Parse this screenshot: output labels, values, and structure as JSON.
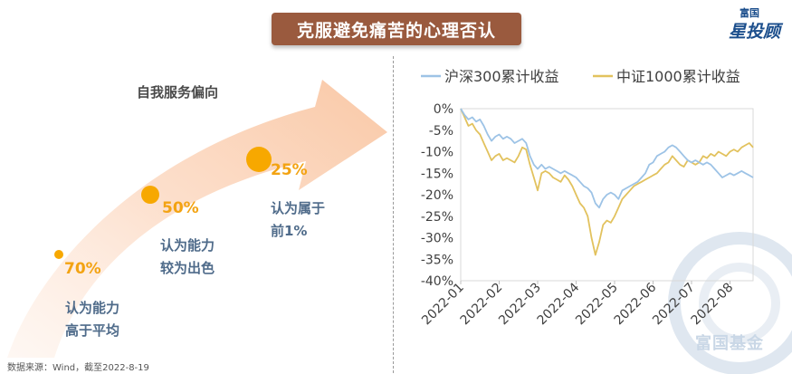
{
  "page": {
    "title": "克服避免痛苦的心理否认",
    "logo_small": "富国",
    "logo_big": "星投顾",
    "footnote": "数据来源：Wind，截至2022-8-19",
    "watermark": "富国基金"
  },
  "bias": {
    "title": "自我服务偏向",
    "points": [
      {
        "pct": "70%",
        "line1": "认为能力",
        "line2": "高于平均"
      },
      {
        "pct": "50%",
        "line1": "认为能力",
        "line2": "较为出色"
      },
      {
        "pct": "25%",
        "line1": "认为属于",
        "line2": "前1%"
      }
    ]
  },
  "colors": {
    "csi300": "#9dc3e6",
    "csi1000": "#e2c25e",
    "accent": "#9a5a3e",
    "dot": "#f7a800"
  },
  "chart_data": {
    "type": "line",
    "title": "",
    "xlabel": "",
    "ylabel": "",
    "ylim": [
      -40,
      0
    ],
    "yticks": [
      0,
      -5,
      -10,
      -15,
      -20,
      -25,
      -30,
      -35,
      -40
    ],
    "ytick_labels": [
      "0%",
      "-5%",
      "-10%",
      "-15%",
      "-20%",
      "-25%",
      "-30%",
      "-35%",
      "-40%"
    ],
    "xtick_labels": [
      "2022-01",
      "2022-02",
      "2022-03",
      "2022-04",
      "2022-05",
      "2022-06",
      "2022-07",
      "2022-08"
    ],
    "x_range": [
      0,
      7.6
    ],
    "series": [
      {
        "name": "沪深300累计收益",
        "color": "#9dc3e6",
        "x": [
          0,
          0.1,
          0.2,
          0.3,
          0.4,
          0.5,
          0.6,
          0.7,
          0.8,
          0.9,
          1.0,
          1.1,
          1.2,
          1.3,
          1.4,
          1.5,
          1.6,
          1.7,
          1.8,
          1.9,
          2.0,
          2.1,
          2.2,
          2.3,
          2.4,
          2.5,
          2.6,
          2.7,
          2.8,
          2.9,
          3.0,
          3.1,
          3.2,
          3.3,
          3.4,
          3.5,
          3.6,
          3.7,
          3.8,
          3.9,
          4.0,
          4.1,
          4.2,
          4.3,
          4.4,
          4.5,
          4.6,
          4.7,
          4.8,
          4.9,
          5.0,
          5.1,
          5.2,
          5.3,
          5.4,
          5.5,
          5.6,
          5.7,
          5.8,
          5.9,
          6.0,
          6.1,
          6.2,
          6.3,
          6.4,
          6.5,
          6.6,
          6.7,
          6.8,
          6.9,
          7.0,
          7.1,
          7.2,
          7.3,
          7.4,
          7.5,
          7.6
        ],
        "values": [
          0,
          -1.5,
          -2.5,
          -2,
          -3,
          -2.5,
          -4,
          -6,
          -7.5,
          -6.5,
          -6,
          -7,
          -6.5,
          -7,
          -8,
          -7.5,
          -7,
          -8,
          -11,
          -13,
          -14,
          -13,
          -14,
          -13.5,
          -14,
          -14.5,
          -15,
          -14.5,
          -15,
          -15.5,
          -16,
          -17,
          -18,
          -18.5,
          -19.5,
          -22,
          -23,
          -21,
          -20,
          -19.5,
          -20,
          -21,
          -19,
          -18.5,
          -18,
          -17.5,
          -17,
          -16,
          -15,
          -13,
          -12.5,
          -11,
          -10.5,
          -10,
          -9,
          -8.5,
          -9,
          -10,
          -11,
          -12,
          -12.5,
          -12,
          -12.5,
          -13,
          -12.5,
          -13,
          -14,
          -15,
          -16,
          -15.5,
          -15,
          -15.5,
          -15,
          -14.5,
          -15,
          -15.5,
          -16
        ]
      },
      {
        "name": "中证1000累计收益",
        "color": "#e2c25e",
        "x": [
          0,
          0.1,
          0.2,
          0.3,
          0.4,
          0.5,
          0.6,
          0.7,
          0.8,
          0.9,
          1.0,
          1.1,
          1.2,
          1.3,
          1.4,
          1.5,
          1.6,
          1.7,
          1.8,
          1.9,
          2.0,
          2.1,
          2.2,
          2.3,
          2.4,
          2.5,
          2.6,
          2.7,
          2.8,
          2.9,
          3.0,
          3.1,
          3.2,
          3.3,
          3.4,
          3.5,
          3.6,
          3.7,
          3.8,
          3.9,
          4.0,
          4.1,
          4.2,
          4.3,
          4.4,
          4.5,
          4.6,
          4.7,
          4.8,
          4.9,
          5.0,
          5.1,
          5.2,
          5.3,
          5.4,
          5.5,
          5.6,
          5.7,
          5.8,
          5.9,
          6.0,
          6.1,
          6.2,
          6.3,
          6.4,
          6.5,
          6.6,
          6.7,
          6.8,
          6.9,
          7.0,
          7.1,
          7.2,
          7.3,
          7.4,
          7.5,
          7.6
        ],
        "values": [
          0,
          -2,
          -4,
          -3.5,
          -5,
          -6,
          -8,
          -10,
          -12,
          -11,
          -10.5,
          -12,
          -11.5,
          -12,
          -12.5,
          -11,
          -9,
          -9.5,
          -13,
          -16,
          -19,
          -15,
          -14.5,
          -15,
          -16,
          -16.5,
          -17,
          -15.5,
          -16.5,
          -18,
          -20,
          -22,
          -23,
          -25,
          -30,
          -34,
          -31,
          -27,
          -26,
          -26.5,
          -25,
          -23,
          -21,
          -20,
          -19,
          -18,
          -17.5,
          -17,
          -16.5,
          -16,
          -15.5,
          -15,
          -14,
          -13,
          -12.5,
          -11,
          -12,
          -13,
          -13.5,
          -12,
          -12.5,
          -13,
          -12.5,
          -11,
          -11.5,
          -10.5,
          -11,
          -10,
          -10.5,
          -11,
          -10,
          -9.5,
          -10,
          -9,
          -8.5,
          -8,
          -9
        ]
      }
    ]
  }
}
